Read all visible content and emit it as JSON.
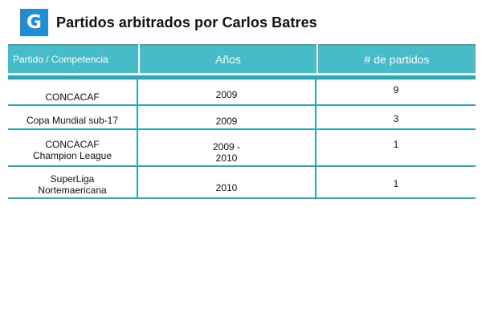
{
  "header": {
    "logo_letter": "G",
    "title": "Partidos arbitrados por Carlos Batres"
  },
  "table": {
    "columns": [
      "Partido / Competencia",
      "Años",
      "# de partidos"
    ],
    "rows": [
      {
        "competition": [
          "CONCACAF"
        ],
        "years": [
          "2009"
        ],
        "matches": "9"
      },
      {
        "competition": [
          "Copa Mundial sub-17"
        ],
        "years": [
          "2009"
        ],
        "matches": "3"
      },
      {
        "competition": [
          "CONCACAF",
          "Champion League"
        ],
        "years": [
          "2009 -",
          "2010"
        ],
        "matches": "1"
      },
      {
        "competition": [
          "SuperLiga",
          "Nortemaericana"
        ],
        "years": [
          "2010"
        ],
        "matches": "1"
      }
    ]
  },
  "colors": {
    "logo": "#1e8fd6",
    "header_fill": "#45bcc8",
    "rule": "#2fa8b5"
  }
}
